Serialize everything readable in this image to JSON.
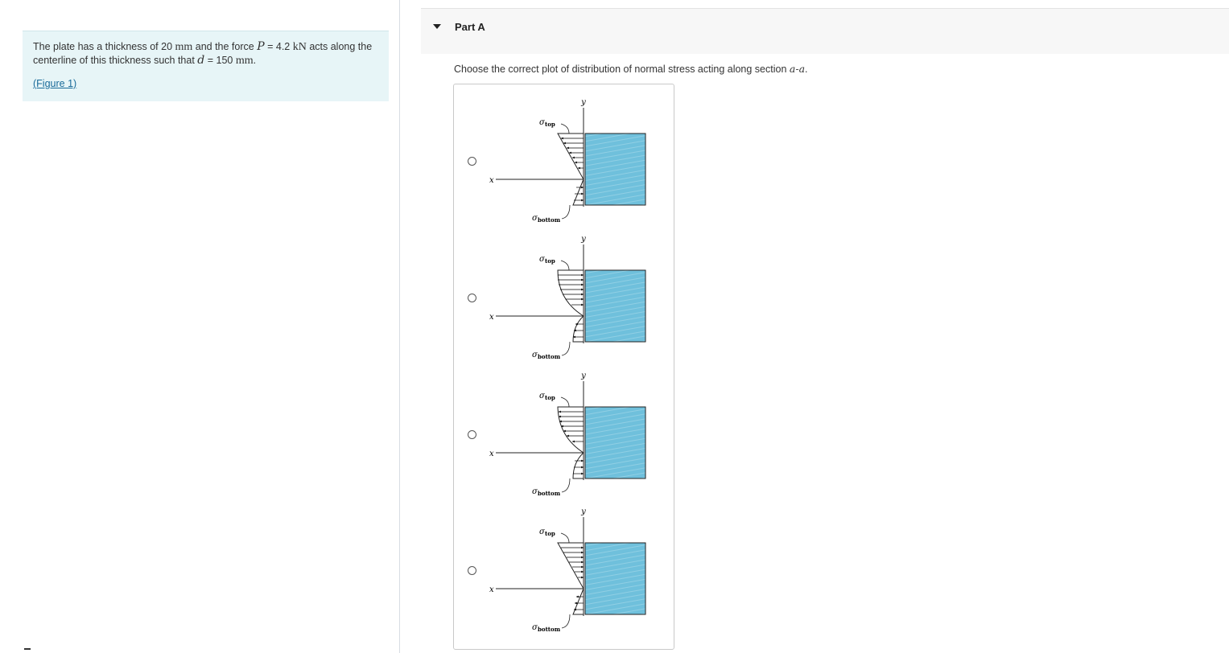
{
  "problem": {
    "text_1": "The plate has a thickness of 20 ",
    "unit_mm": "mm",
    "text_2": " and the force ",
    "var_P": "P",
    "text_3": " = 4.2 ",
    "unit_kN": "kN",
    "text_4": " acts along the centerline of this thickness such that ",
    "var_d": "d",
    "text_5": " = 150 ",
    "unit_mm2": "mm",
    "text_6": ".",
    "figure_link": "(Figure 1)"
  },
  "part": {
    "title": "Part A",
    "question_prefix": "Choose the correct plot of distribution of normal stress acting along section ",
    "section_label": "a-a",
    "question_suffix": "."
  },
  "options": [
    {
      "y_label": "y",
      "x_label": "x",
      "sigma": "σ",
      "top": "top",
      "bottom": "bottom"
    },
    {
      "y_label": "y",
      "x_label": "x",
      "sigma": "σ",
      "top": "top",
      "bottom": "bottom"
    },
    {
      "y_label": "y",
      "x_label": "x",
      "sigma": "σ",
      "top": "top",
      "bottom": "bottom"
    },
    {
      "y_label": "y",
      "x_label": "x",
      "sigma": "σ",
      "top": "top",
      "bottom": "bottom"
    }
  ],
  "colors": {
    "info_bg": "#e7f5f7",
    "link": "#1a6b9a",
    "block_fill": "#6fc0dc"
  }
}
